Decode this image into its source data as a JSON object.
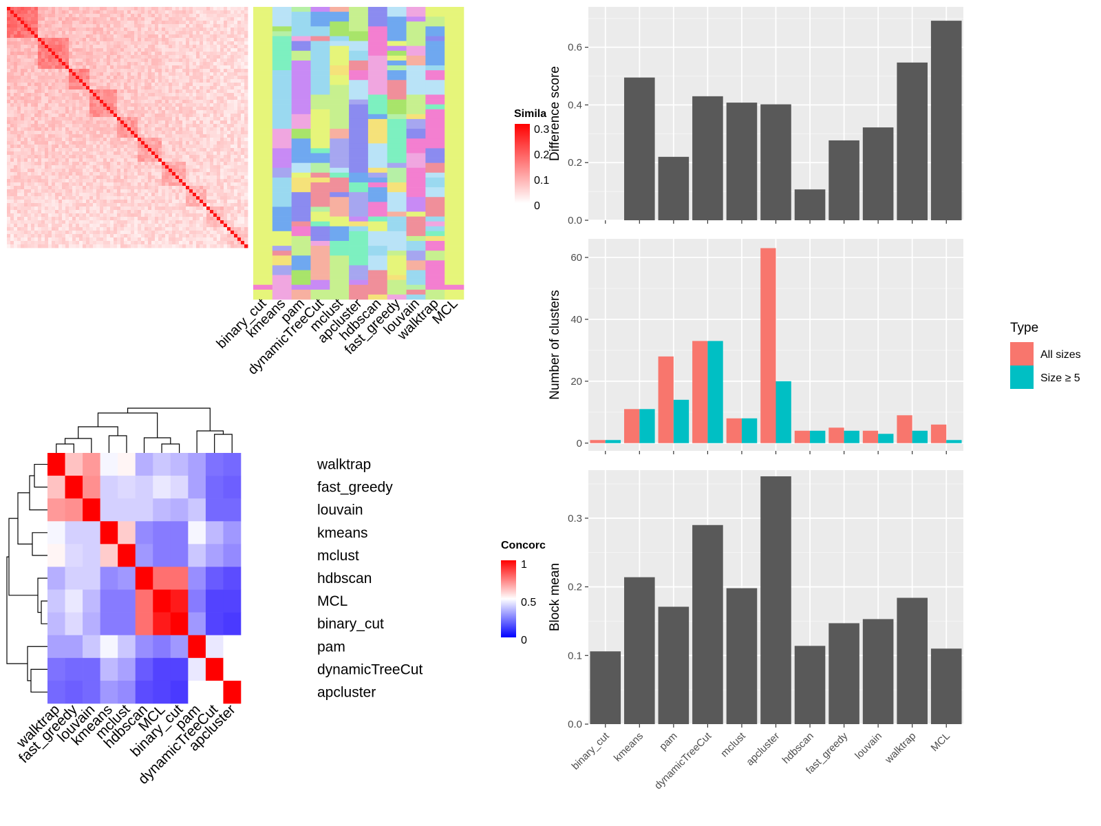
{
  "methods": [
    "binary_cut",
    "kmeans",
    "pam",
    "dynamicTreeCut",
    "mclust",
    "apcluster",
    "hdbscan",
    "fast_greedy",
    "louvain",
    "walktrap",
    "MCL"
  ],
  "chart_data": [
    {
      "id": "similarity-heatmap",
      "type": "heatmap",
      "legend_title": "Similarity",
      "legend_title_visible": "Simila",
      "legend_ticks": [
        "0.3",
        "0.2",
        "0.1",
        "0"
      ],
      "scale_range": [
        0,
        0.3
      ],
      "colors": {
        "low": "#ffffff",
        "high": "#ff0000"
      }
    },
    {
      "id": "partition-tracks",
      "type": "heatmap",
      "tracks": [
        "binary_cut",
        "kmeans",
        "pam",
        "dynamicTreeCut",
        "mclust",
        "apcluster",
        "hdbscan",
        "fast_greedy",
        "louvain",
        "walktrap",
        "MCL"
      ]
    },
    {
      "id": "concordance-heatmap",
      "type": "heatmap",
      "legend_title": "Concordance",
      "legend_title_visible": "Concorc",
      "legend_ticks": [
        "1",
        "0.5",
        "0"
      ],
      "scale_range": [
        0,
        1
      ],
      "colors": {
        "low": "#0000ff",
        "mid": "#ffffff",
        "high": "#ff0000"
      },
      "row_labels": [
        "walktrap",
        "fast_greedy",
        "louvain",
        "kmeans",
        "mclust",
        "hdbscan",
        "MCL",
        "binary_cut",
        "pam",
        "dynamicTreeCut",
        "apcluster"
      ],
      "col_labels": [
        "walktrap",
        "fast_greedy",
        "louvain",
        "kmeans",
        "mclust",
        "hdbscan",
        "MCL",
        "binary_cut",
        "pam",
        "dynamicTreeCut",
        "apcluster"
      ],
      "values": [
        [
          1.0,
          0.62,
          0.7,
          0.48,
          0.52,
          0.33,
          0.38,
          0.35,
          0.3,
          0.2,
          0.18
        ],
        [
          0.62,
          1.0,
          0.72,
          0.4,
          0.42,
          0.4,
          0.45,
          0.42,
          0.3,
          0.18,
          0.16
        ],
        [
          0.7,
          0.72,
          1.0,
          0.4,
          0.4,
          0.4,
          0.35,
          0.33,
          0.38,
          0.18,
          0.18
        ],
        [
          0.48,
          0.4,
          0.4,
          1.0,
          0.6,
          0.25,
          0.22,
          0.22,
          0.48,
          0.35,
          0.28
        ],
        [
          0.52,
          0.42,
          0.4,
          0.6,
          1.0,
          0.28,
          0.22,
          0.22,
          0.38,
          0.3,
          0.25
        ],
        [
          0.33,
          0.4,
          0.4,
          0.25,
          0.28,
          1.0,
          0.78,
          0.78,
          0.26,
          0.15,
          0.12
        ],
        [
          0.38,
          0.45,
          0.35,
          0.22,
          0.22,
          0.78,
          1.0,
          0.95,
          0.22,
          0.1,
          0.1
        ],
        [
          0.35,
          0.42,
          0.33,
          0.22,
          0.22,
          0.78,
          0.95,
          1.0,
          0.28,
          0.1,
          0.08
        ],
        [
          0.3,
          0.3,
          0.38,
          0.48,
          0.38,
          0.26,
          0.22,
          0.28,
          1.0,
          0.45,
          0.5
        ],
        [
          0.2,
          0.18,
          0.18,
          0.35,
          0.3,
          0.15,
          0.1,
          0.1,
          0.45,
          1.0,
          0.5
        ],
        [
          0.18,
          0.16,
          0.18,
          0.28,
          0.25,
          0.12,
          0.1,
          0.08,
          0.5,
          0.5,
          1.0
        ]
      ]
    },
    {
      "id": "difference-score",
      "type": "bar",
      "ylabel": "Difference score",
      "categories": [
        "binary_cut",
        "kmeans",
        "pam",
        "dynamicTreeCut",
        "mclust",
        "apcluster",
        "hdbscan",
        "fast_greedy",
        "louvain",
        "walktrap",
        "MCL"
      ],
      "values": [
        0.0,
        0.495,
        0.22,
        0.43,
        0.408,
        0.402,
        0.107,
        0.277,
        0.322,
        0.547,
        0.692
      ],
      "ylim": [
        0,
        0.74
      ],
      "yticks": [
        0.0,
        0.2,
        0.4,
        0.6
      ],
      "ytick_labels": [
        "0.0",
        "0.2",
        "0.4",
        "0.6"
      ],
      "bar_color": "#595959"
    },
    {
      "id": "number-of-clusters",
      "type": "bar",
      "ylabel": "Number of clusters",
      "categories": [
        "binary_cut",
        "kmeans",
        "pam",
        "dynamicTreeCut",
        "mclust",
        "apcluster",
        "hdbscan",
        "fast_greedy",
        "louvain",
        "walktrap",
        "MCL"
      ],
      "series": [
        {
          "name": "All sizes",
          "color": "#f8766d",
          "values": [
            1,
            11,
            28,
            33,
            8,
            63,
            4,
            5,
            4,
            9,
            6
          ]
        },
        {
          "name": "Size ≥ 5",
          "color": "#00bfc4",
          "values": [
            1,
            11,
            14,
            33,
            8,
            20,
            4,
            4,
            3,
            4,
            1
          ]
        }
      ],
      "ylim": [
        -2.5,
        66
      ],
      "yticks": [
        0,
        20,
        40,
        60
      ],
      "ytick_labels": [
        "0",
        "20",
        "40",
        "60"
      ],
      "legend_title": "Type",
      "legend_position": "right"
    },
    {
      "id": "block-mean",
      "type": "bar",
      "ylabel": "Block mean",
      "categories": [
        "binary_cut",
        "kmeans",
        "pam",
        "dynamicTreeCut",
        "mclust",
        "apcluster",
        "hdbscan",
        "fast_greedy",
        "louvain",
        "walktrap",
        "MCL"
      ],
      "values": [
        0.106,
        0.214,
        0.171,
        0.29,
        0.198,
        0.361,
        0.114,
        0.147,
        0.153,
        0.184,
        0.11
      ],
      "ylim": [
        0,
        0.37
      ],
      "yticks": [
        0.0,
        0.1,
        0.2,
        0.3
      ],
      "ytick_labels": [
        "0.0",
        "0.1",
        "0.2",
        "0.3"
      ],
      "bar_color": "#595959"
    }
  ]
}
